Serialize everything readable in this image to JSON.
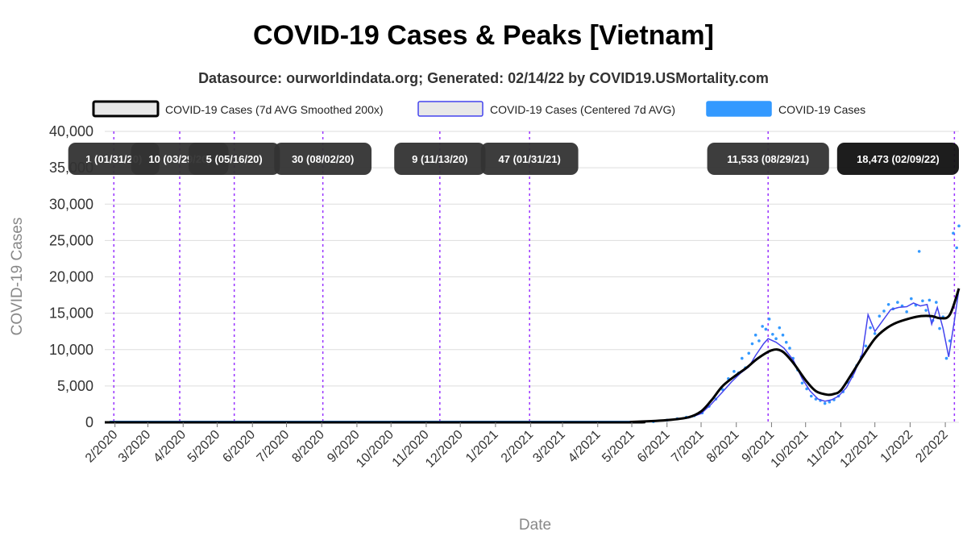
{
  "chart_data": {
    "type": "line",
    "title": "COVID-19 Cases & Peaks [Vietnam]",
    "subtitle": "Datasource: ourworldindata.org; Generated: 02/14/22 by COVID19.USMortality.com",
    "xlabel": "Date",
    "ylabel": "COVID-19 Cases",
    "ylim": [
      0,
      40000
    ],
    "y_ticks": [
      "0",
      "5,000",
      "10,000",
      "15,000",
      "20,000",
      "25,000",
      "30,000",
      "35,000",
      "40,000"
    ],
    "y_tick_values": [
      0,
      5000,
      10000,
      15000,
      20000,
      25000,
      30000,
      35000,
      40000
    ],
    "x_ticks": [
      "2/2020",
      "3/2020",
      "4/2020",
      "5/2020",
      "6/2020",
      "7/2020",
      "8/2020",
      "9/2020",
      "10/2020",
      "11/2020",
      "12/2020",
      "1/2021",
      "2/2021",
      "3/2021",
      "4/2021",
      "5/2021",
      "6/2021",
      "7/2021",
      "8/2021",
      "9/2021",
      "10/2021",
      "11/2021",
      "12/2021",
      "1/2022",
      "2/2022"
    ],
    "x_range": [
      "2020-01-23",
      "2022-02-13"
    ],
    "grid": true,
    "legend_position": "top",
    "legend": [
      {
        "label": "COVID-19 Cases (7d AVG Smoothed 200x)",
        "color": "#000000"
      },
      {
        "label": "COVID-19 Cases (Centered 7d AVG)",
        "color": "#4444ee"
      },
      {
        "label": "COVID-19 Cases",
        "color": "#3399ff"
      }
    ],
    "peaks": [
      {
        "date": "2020-01-31",
        "label": "1 (01/31/20)"
      },
      {
        "date": "2020-03-29",
        "label": "10 (03/29/20)"
      },
      {
        "date": "2020-05-16",
        "label": "5 (05/16/20)"
      },
      {
        "date": "2020-08-02",
        "label": "30 (08/02/20)"
      },
      {
        "date": "2020-11-13",
        "label": "9 (11/13/20)"
      },
      {
        "date": "2021-01-31",
        "label": "47 (01/31/21)"
      },
      {
        "date": "2021-08-29",
        "label": "11,533 (08/29/21)"
      },
      {
        "date": "2022-02-09",
        "label": "18,473 (02/09/22)"
      }
    ],
    "series": [
      {
        "name": "COVID-19 Cases (7d AVG Smoothed 200x)",
        "color": "#000000",
        "x": [
          "2020-01-23",
          "2021-04-01",
          "2021-05-01",
          "2021-06-01",
          "2021-06-20",
          "2021-07-01",
          "2021-07-10",
          "2021-07-20",
          "2021-08-01",
          "2021-08-10",
          "2021-08-20",
          "2021-09-01",
          "2021-09-10",
          "2021-09-20",
          "2021-10-01",
          "2021-10-10",
          "2021-10-20",
          "2021-10-26",
          "2021-11-01",
          "2021-11-10",
          "2021-11-20",
          "2021-12-01",
          "2021-12-10",
          "2021-12-20",
          "2022-01-01",
          "2022-01-10",
          "2022-01-20",
          "2022-01-28",
          "2022-02-05",
          "2022-02-13"
        ],
        "y": [
          0,
          0,
          50,
          300,
          700,
          1500,
          3000,
          5000,
          6500,
          7500,
          8800,
          9900,
          9800,
          8200,
          5800,
          4300,
          3800,
          3900,
          4400,
          6500,
          9000,
          11500,
          12800,
          13700,
          14300,
          14600,
          14600,
          14300,
          14800,
          18400
        ]
      },
      {
        "name": "COVID-19 Cases (Centered 7d AVG)",
        "color": "#4444ee",
        "x": [
          "2020-01-23",
          "2021-05-15",
          "2021-06-05",
          "2021-06-20",
          "2021-07-01",
          "2021-07-10",
          "2021-07-20",
          "2021-07-28",
          "2021-08-05",
          "2021-08-12",
          "2021-08-18",
          "2021-08-25",
          "2021-08-29",
          "2021-09-05",
          "2021-09-12",
          "2021-09-20",
          "2021-09-28",
          "2021-10-05",
          "2021-10-12",
          "2021-10-18",
          "2021-10-24",
          "2021-10-30",
          "2021-11-06",
          "2021-11-13",
          "2021-11-20",
          "2021-11-25",
          "2021-12-01",
          "2021-12-08",
          "2021-12-15",
          "2021-12-22",
          "2021-12-29",
          "2022-01-04",
          "2022-01-10",
          "2022-01-16",
          "2022-01-20",
          "2022-01-25",
          "2022-01-30",
          "2022-02-04",
          "2022-02-09",
          "2022-02-13"
        ],
        "y": [
          0,
          80,
          400,
          600,
          1200,
          2500,
          4200,
          5600,
          6800,
          7600,
          9200,
          10800,
          11500,
          11000,
          10200,
          8600,
          6000,
          4300,
          3200,
          2900,
          3100,
          3600,
          4800,
          6800,
          9500,
          14800,
          12500,
          14000,
          15500,
          15800,
          15900,
          16400,
          16000,
          16200,
          13500,
          15800,
          12900,
          9000,
          14000,
          18300
        ]
      },
      {
        "name": "COVID-19 Cases",
        "color": "#3399ff",
        "x": [
          "2021-05-20",
          "2021-06-01",
          "2021-06-10",
          "2021-06-18",
          "2021-06-25",
          "2021-07-02",
          "2021-07-08",
          "2021-07-14",
          "2021-07-20",
          "2021-07-25",
          "2021-07-30",
          "2021-08-03",
          "2021-08-06",
          "2021-08-09",
          "2021-08-12",
          "2021-08-15",
          "2021-08-18",
          "2021-08-21",
          "2021-08-24",
          "2021-08-27",
          "2021-08-30",
          "2021-09-02",
          "2021-09-05",
          "2021-09-08",
          "2021-09-11",
          "2021-09-14",
          "2021-09-17",
          "2021-09-20",
          "2021-09-24",
          "2021-09-28",
          "2021-10-02",
          "2021-10-06",
          "2021-10-10",
          "2021-10-14",
          "2021-10-18",
          "2021-10-22",
          "2021-10-26",
          "2021-10-30",
          "2021-11-03",
          "2021-11-07",
          "2021-11-11",
          "2021-11-15",
          "2021-11-19",
          "2021-11-23",
          "2021-11-27",
          "2021-12-01",
          "2021-12-05",
          "2021-12-09",
          "2021-12-13",
          "2021-12-17",
          "2021-12-21",
          "2021-12-25",
          "2021-12-29",
          "2022-01-02",
          "2022-01-06",
          "2022-01-09",
          "2022-01-12",
          "2022-01-15",
          "2022-01-18",
          "2022-01-21",
          "2022-01-24",
          "2022-01-27",
          "2022-01-30",
          "2022-02-02",
          "2022-02-05",
          "2022-02-08",
          "2022-02-11",
          "2022-02-13"
        ],
        "y": [
          100,
          300,
          500,
          700,
          900,
          1300,
          2200,
          3200,
          4500,
          6000,
          7000,
          6800,
          8800,
          7500,
          9500,
          10800,
          12000,
          11200,
          13200,
          12800,
          14200,
          12100,
          11500,
          13000,
          12000,
          11000,
          10200,
          8800,
          7200,
          5400,
          4600,
          3600,
          3200,
          3000,
          2600,
          2800,
          3100,
          3600,
          4200,
          5500,
          6300,
          7800,
          9000,
          10500,
          13000,
          12200,
          14600,
          15300,
          16200,
          15600,
          16500,
          16000,
          15200,
          17000,
          16100,
          23500,
          16700,
          15400,
          16800,
          14000,
          16500,
          12900,
          14500,
          8800,
          11200,
          26000,
          24000,
          27000
        ]
      }
    ]
  }
}
